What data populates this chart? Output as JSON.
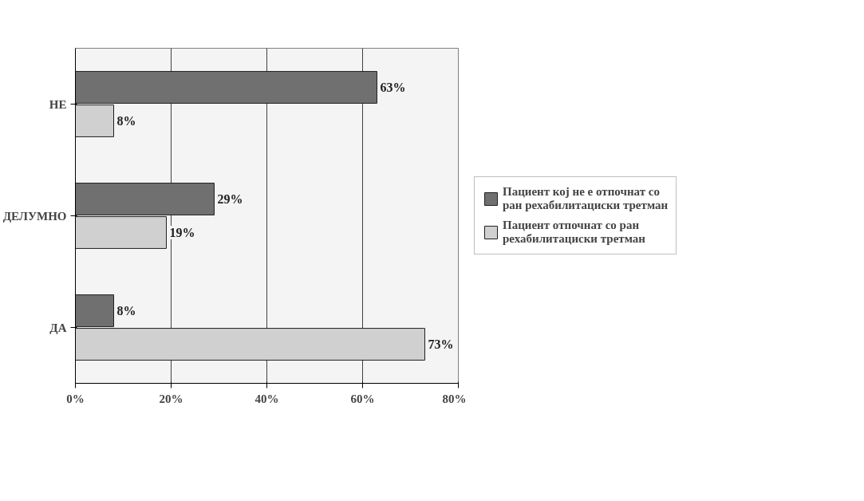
{
  "chart_data": {
    "type": "bar",
    "orientation": "horizontal",
    "categories": [
      "НЕ",
      "ДЕЛУМНО",
      "ДА"
    ],
    "series": [
      {
        "name": "Пациент кој не е отпочнат со ран рехабилитациски третман",
        "color": "#707070",
        "values": [
          63,
          29,
          8
        ],
        "value_labels": [
          "63%",
          "29%",
          "8%"
        ]
      },
      {
        "name": "Пациент отпочнат со ран рехабилитациски третман",
        "color": "#d0d0d0",
        "values": [
          8,
          19,
          73
        ],
        "value_labels": [
          "8%",
          "19%",
          "73%"
        ]
      }
    ],
    "xlim": [
      0,
      80
    ],
    "xticks": [
      {
        "value": 0,
        "label": "0%"
      },
      {
        "value": 20,
        "label": "20%"
      },
      {
        "value": 40,
        "label": "40%"
      },
      {
        "value": 60,
        "label": "60%"
      },
      {
        "value": 80,
        "label": "80%"
      }
    ],
    "grid": "x",
    "legend": "right"
  }
}
